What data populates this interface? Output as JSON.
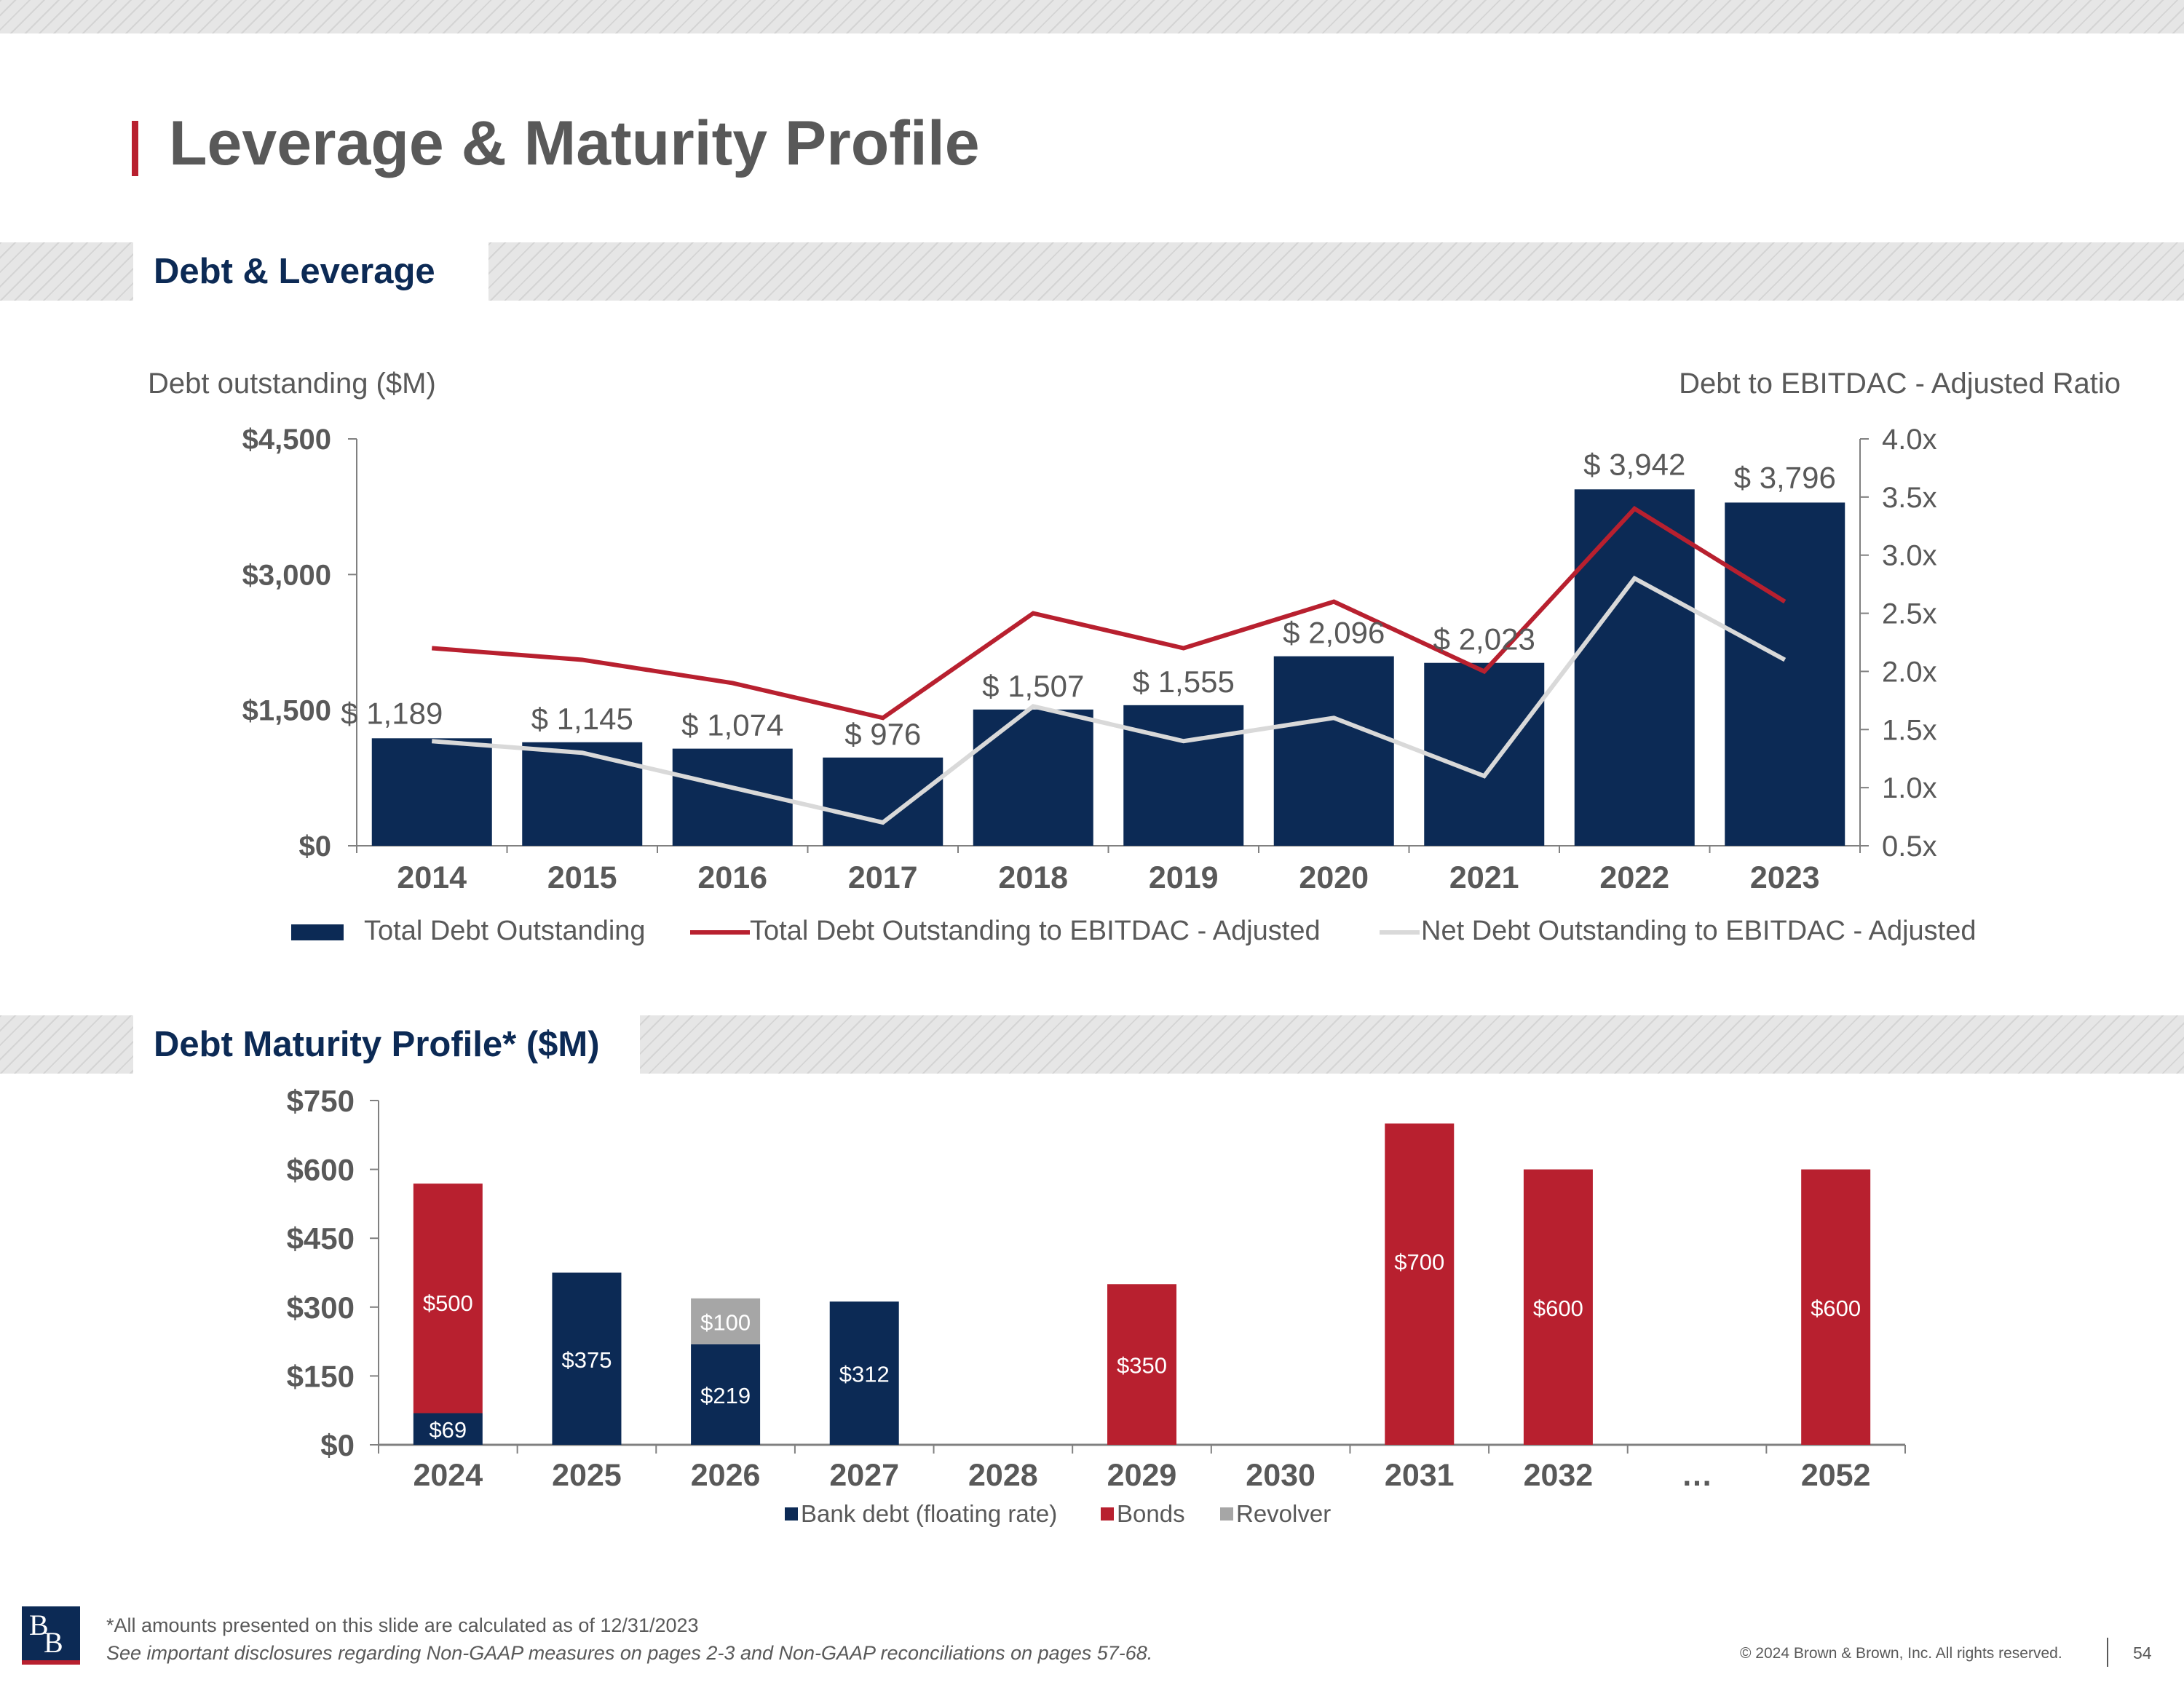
{
  "page": {
    "title": "Leverage & Maturity Profile",
    "colors": {
      "navy": "#0c2a55",
      "red": "#b8202f",
      "light_gray": "#d9d9d9",
      "revolver_gray": "#a6a6a6",
      "text": "#595959"
    }
  },
  "section_debt": {
    "label": "Debt & Leverage"
  },
  "section_maturity": {
    "label": "Debt Maturity Profile* ($M)"
  },
  "chart_data": [
    {
      "type": "bar",
      "subtype": "bar-line-combo",
      "title": "",
      "ylabel_left": "Debt outstanding ($M)",
      "ylabel_right": "Debt to EBITDAC - Adjusted Ratio",
      "categories": [
        "2014",
        "2015",
        "2016",
        "2017",
        "2018",
        "2019",
        "2020",
        "2021",
        "2022",
        "2023"
      ],
      "ylim_left": [
        0,
        4500
      ],
      "yticks_left": [
        "$0",
        "$1,500",
        "$3,000",
        "$4,500"
      ],
      "ylim_right": [
        0.5,
        4.0
      ],
      "yticks_right": [
        "0.5x",
        "1.0x",
        "1.5x",
        "2.0x",
        "2.5x",
        "3.0x",
        "3.5x",
        "4.0x"
      ],
      "series": [
        {
          "name": "Total Debt Outstanding",
          "kind": "bar",
          "axis": "left",
          "color": "#0c2a55",
          "values": [
            1189,
            1145,
            1074,
            976,
            1507,
            1555,
            2096,
            2023,
            3942,
            3796
          ],
          "labels": [
            "$ 1,189",
            "$ 1,145",
            "$ 1,074",
            "$ 976",
            "$ 1,507",
            "$ 1,555",
            "$ 2,096",
            "$ 2,023",
            "$ 3,942",
            "$ 3,796"
          ]
        },
        {
          "name": "Total Debt Outstanding to EBITDAC - Adjusted",
          "kind": "line",
          "axis": "right",
          "color": "#b8202f",
          "values": [
            2.2,
            2.1,
            1.9,
            1.6,
            2.5,
            2.2,
            2.6,
            2.0,
            3.4,
            2.6
          ]
        },
        {
          "name": "Net Debt Outstanding to EBITDAC - Adjusted",
          "kind": "line",
          "axis": "right",
          "color": "#d9d9d9",
          "values": [
            1.4,
            1.3,
            1.0,
            0.7,
            1.7,
            1.4,
            1.6,
            1.1,
            2.8,
            2.1
          ]
        }
      ],
      "legend": "bottom"
    },
    {
      "type": "bar",
      "subtype": "stacked",
      "title": "Debt Maturity Profile* ($M)",
      "categories": [
        "2024",
        "2025",
        "2026",
        "2027",
        "2028",
        "2029",
        "2030",
        "2031",
        "2032",
        "…",
        "2052"
      ],
      "ylim": [
        0,
        750
      ],
      "yticks": [
        "$0",
        "$150",
        "$300",
        "$450",
        "$600",
        "$750"
      ],
      "series": [
        {
          "name": "Bank debt (floating rate)",
          "color": "#0c2a55",
          "values": [
            69,
            375,
            219,
            312,
            0,
            0,
            0,
            0,
            0,
            0,
            0
          ],
          "labels": [
            "$69",
            "$375",
            "$219",
            "$312",
            "",
            "",
            "",
            "",
            "",
            "",
            ""
          ]
        },
        {
          "name": "Bonds",
          "color": "#b8202f",
          "values": [
            500,
            0,
            0,
            0,
            0,
            350,
            0,
            700,
            600,
            0,
            600
          ],
          "labels": [
            "$500",
            "",
            "",
            "",
            "",
            "$350",
            "",
            "$700",
            "$600",
            "",
            "$600"
          ]
        },
        {
          "name": "Revolver",
          "color": "#a6a6a6",
          "values": [
            0,
            0,
            100,
            0,
            0,
            0,
            0,
            0,
            0,
            0,
            0
          ],
          "labels": [
            "",
            "",
            "$100",
            "",
            "",
            "",
            "",
            "",
            "",
            "",
            ""
          ]
        }
      ],
      "legend": "bottom"
    }
  ],
  "footer": {
    "logo_text": "BB",
    "footnote": "*All amounts presented on this slide are calculated as of 12/31/2023",
    "disclaimer": "See important disclosures regarding Non-GAAP measures on pages 2-3 and Non-GAAP reconciliations on pages 57-68.",
    "copyright": "© 2024 Brown & Brown, Inc. All rights reserved.",
    "page_number": "54"
  }
}
